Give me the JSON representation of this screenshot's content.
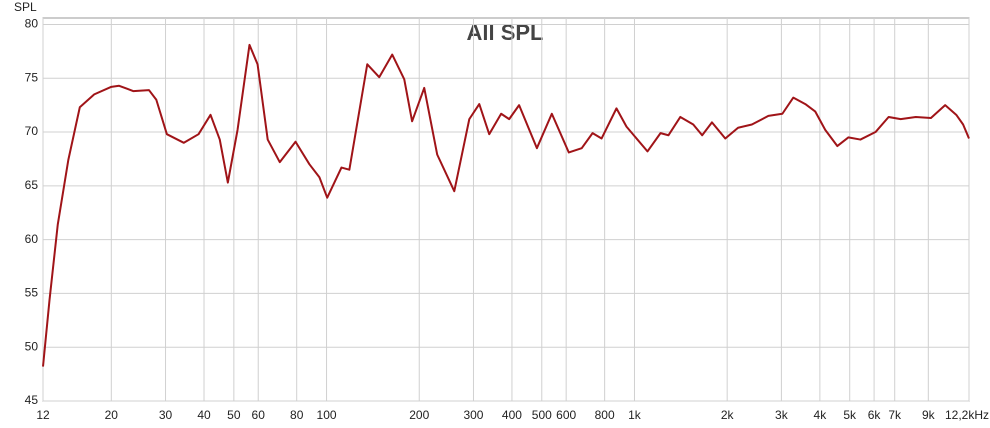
{
  "chart_data": {
    "type": "line",
    "title": "All SPL",
    "y_label": "SPL",
    "log_x": true,
    "grid": true,
    "x": [
      12,
      12.6,
      13.4,
      14.5,
      15.8,
      17.6,
      20,
      21.2,
      23.6,
      26.5,
      28,
      30.3,
      34.4,
      38.4,
      42,
      45,
      47.8,
      51.4,
      56.2,
      59.7,
      64.4,
      70.5,
      79.3,
      88,
      94.8,
      100.5,
      111.8,
      118.6,
      135.6,
      148.3,
      163.4,
      178.8,
      189.6,
      207.6,
      228.8,
      259.9,
      290.8,
      313.3,
      337.5,
      369,
      391.8,
      422,
      482,
      539,
      612,
      674,
      731,
      782,
      874,
      942,
      1102,
      1215,
      1289,
      1409,
      1552,
      1659,
      1785,
      1972,
      2170,
      2406,
      2721,
      3022,
      3280,
      3588,
      3866,
      4164,
      4557,
      4949,
      5417,
      6065,
      6688,
      7320,
      8196,
      9177,
      10209,
      11093,
      11675,
      12200
    ],
    "series": [
      {
        "name": "All SPL",
        "color": "#a01418",
        "values": [
          48.2,
          54.4,
          61.4,
          67.4,
          72.3,
          73.5,
          74.2,
          74.3,
          73.8,
          73.9,
          73.0,
          69.8,
          69.0,
          69.8,
          71.6,
          69.3,
          65.3,
          70.2,
          78.1,
          76.3,
          69.3,
          67.2,
          69.1,
          67.0,
          65.8,
          63.9,
          66.7,
          66.5,
          76.3,
          75.1,
          77.2,
          74.9,
          71.0,
          74.1,
          67.9,
          64.5,
          71.2,
          72.6,
          69.8,
          71.7,
          71.2,
          72.5,
          68.5,
          71.7,
          68.1,
          68.5,
          69.9,
          69.4,
          72.2,
          70.5,
          68.2,
          69.9,
          69.7,
          71.4,
          70.7,
          69.7,
          70.9,
          69.4,
          70.4,
          70.7,
          71.5,
          71.7,
          73.2,
          72.6,
          71.9,
          70.2,
          68.7,
          69.5,
          69.3,
          70.0,
          71.4,
          71.2,
          71.4,
          71.3,
          72.5,
          71.6,
          70.7,
          69.4
        ]
      }
    ],
    "xlim": [
      12,
      12200
    ],
    "ylim": [
      45,
      80.6
    ],
    "xticks": [
      12,
      20,
      30,
      40,
      50,
      60,
      80,
      100,
      200,
      300,
      400,
      500,
      600,
      800,
      {
        "value": 1000,
        "label": "1k"
      },
      {
        "value": 2000,
        "label": "2k"
      },
      {
        "value": 3000,
        "label": "3k"
      },
      {
        "value": 4000,
        "label": "4k"
      },
      {
        "value": 5000,
        "label": "5k"
      },
      {
        "value": 6000,
        "label": "6k"
      },
      {
        "value": 7000,
        "label": "7k"
      },
      {
        "value": 9000,
        "label": "9k"
      },
      {
        "value": 12200,
        "label": "12,2kHz"
      }
    ],
    "yticks": [
      45,
      50,
      55,
      60,
      65,
      70,
      75,
      80
    ]
  }
}
